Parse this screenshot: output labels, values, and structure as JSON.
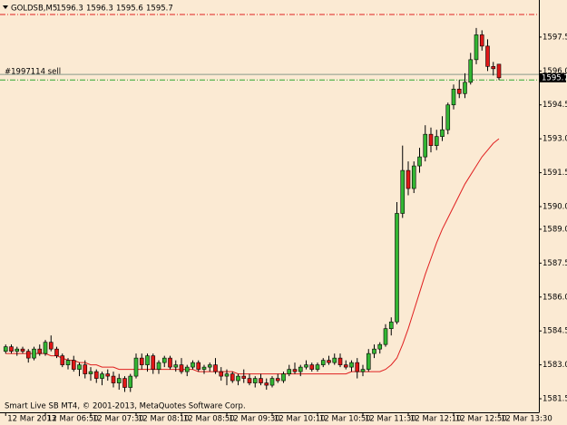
{
  "chart_data": {
    "type": "candlestick",
    "symbol": "GOLDSB,M5",
    "header_ohlc": [
      1596.3,
      1596.3,
      1595.6,
      1595.7
    ],
    "footer": "Smart Live SB MT4, © 2001-2013, MetaQuotes Software Corp.",
    "categories": [
      "12 Mar 2013",
      null,
      null,
      null,
      null,
      null,
      null,
      "12 Mar 06:50",
      null,
      null,
      null,
      null,
      null,
      null,
      null,
      "12 Mar 07:30",
      null,
      null,
      null,
      null,
      null,
      null,
      null,
      "12 Mar 08:10",
      null,
      null,
      null,
      null,
      null,
      null,
      null,
      "12 Mar 08:50",
      null,
      null,
      null,
      null,
      null,
      null,
      null,
      "12 Mar 09:30",
      null,
      null,
      null,
      null,
      null,
      null,
      null,
      "12 Mar 10:10",
      null,
      null,
      null,
      null,
      null,
      null,
      null,
      "12 Mar 10:50",
      null,
      null,
      null,
      null,
      null,
      null,
      null,
      "12 Mar 11:30",
      null,
      null,
      null,
      null,
      null,
      null,
      null,
      "12 Mar 12:10",
      null,
      null,
      null,
      null,
      null,
      null,
      null,
      "12 Mar 12:50",
      null,
      null,
      null,
      null,
      null,
      null,
      null,
      "12 Mar 13:30"
    ],
    "open": [
      1583.6,
      1583.8,
      1583.6,
      1583.7,
      1583.6,
      1583.3,
      1583.7,
      1583.5,
      1584.0,
      1583.7,
      1583.4,
      1583.0,
      1583.2,
      1582.8,
      1583.0,
      1582.6,
      1582.7,
      1582.4,
      1582.6,
      1582.5,
      1582.2,
      1582.4,
      1582.0,
      1582.5,
      1583.3,
      1583.0,
      1583.4,
      1582.8,
      1583.1,
      1583.3,
      1582.9,
      1583.0,
      1582.7,
      1582.9,
      1583.1,
      1582.8,
      1582.9,
      1583.0,
      1582.7,
      1582.5,
      1582.6,
      1582.3,
      1582.5,
      1582.4,
      1582.2,
      1582.4,
      1582.2,
      1582.1,
      1582.4,
      1582.3,
      1582.6,
      1582.8,
      1582.7,
      1582.9,
      1583.0,
      1582.8,
      1583.0,
      1583.2,
      1583.1,
      1583.3,
      1583.0,
      1582.9,
      1583.1,
      1582.7,
      1582.8,
      1583.5,
      1583.7,
      1583.9,
      1584.6,
      1584.9,
      1589.7,
      1591.6,
      1590.8,
      1591.8,
      1592.2,
      1593.2,
      1592.7,
      1593.1,
      1593.4,
      1594.5,
      1595.2,
      1595.0,
      1595.5,
      1596.5,
      1597.6,
      1597.1,
      1596.2,
      1596.3
    ],
    "high": [
      1583.9,
      1583.9,
      1583.8,
      1583.8,
      1583.7,
      1583.8,
      1583.9,
      1584.1,
      1584.3,
      1583.8,
      1583.5,
      1583.3,
      1583.4,
      1583.1,
      1583.2,
      1582.9,
      1582.8,
      1582.7,
      1582.8,
      1582.7,
      1582.6,
      1582.5,
      1582.6,
      1583.5,
      1583.5,
      1583.5,
      1583.5,
      1583.2,
      1583.4,
      1583.4,
      1583.2,
      1583.3,
      1583.0,
      1583.2,
      1583.2,
      1583.0,
      1583.1,
      1583.3,
      1582.9,
      1582.8,
      1582.7,
      1582.6,
      1582.8,
      1582.6,
      1582.5,
      1582.6,
      1582.4,
      1582.5,
      1582.6,
      1582.7,
      1583.0,
      1583.1,
      1583.0,
      1583.2,
      1583.1,
      1583.1,
      1583.3,
      1583.4,
      1583.5,
      1583.5,
      1583.2,
      1583.2,
      1583.3,
      1583.0,
      1583.7,
      1583.9,
      1584.0,
      1584.8,
      1585.1,
      1590.2,
      1592.7,
      1592.0,
      1592.0,
      1592.6,
      1593.6,
      1593.5,
      1593.4,
      1594.0,
      1594.6,
      1595.4,
      1595.6,
      1595.9,
      1596.8,
      1597.9,
      1597.8,
      1597.4,
      1596.4,
      1596.3
    ],
    "low": [
      1583.5,
      1583.5,
      1583.4,
      1583.5,
      1583.1,
      1583.2,
      1583.4,
      1583.4,
      1583.6,
      1583.3,
      1582.9,
      1582.8,
      1582.7,
      1582.5,
      1582.4,
      1582.3,
      1582.2,
      1582.1,
      1582.3,
      1582.0,
      1581.9,
      1581.8,
      1581.8,
      1582.4,
      1582.8,
      1582.7,
      1582.6,
      1582.6,
      1582.9,
      1582.8,
      1582.7,
      1582.6,
      1582.5,
      1582.8,
      1582.7,
      1582.6,
      1582.7,
      1582.6,
      1582.3,
      1582.1,
      1582.2,
      1582.1,
      1582.2,
      1582.1,
      1582.0,
      1582.1,
      1581.9,
      1582.0,
      1582.2,
      1582.2,
      1582.5,
      1582.6,
      1582.5,
      1582.8,
      1582.7,
      1582.7,
      1582.9,
      1583.0,
      1583.0,
      1582.9,
      1582.8,
      1582.7,
      1582.4,
      1582.5,
      1582.7,
      1583.3,
      1583.5,
      1583.8,
      1584.3,
      1584.8,
      1589.5,
      1590.5,
      1590.6,
      1591.5,
      1592.0,
      1592.4,
      1592.5,
      1592.9,
      1593.2,
      1594.3,
      1594.8,
      1594.8,
      1595.4,
      1596.3,
      1596.9,
      1596.0,
      1595.8,
      1595.6
    ],
    "close": [
      1583.8,
      1583.6,
      1583.7,
      1583.6,
      1583.3,
      1583.7,
      1583.5,
      1584.0,
      1583.7,
      1583.4,
      1583.0,
      1583.2,
      1582.8,
      1583.0,
      1582.6,
      1582.7,
      1582.4,
      1582.6,
      1582.5,
      1582.2,
      1582.4,
      1582.0,
      1582.5,
      1583.3,
      1583.0,
      1583.4,
      1582.8,
      1583.1,
      1583.3,
      1582.9,
      1583.0,
      1582.7,
      1582.9,
      1583.1,
      1582.8,
      1582.9,
      1583.0,
      1582.7,
      1582.5,
      1582.6,
      1582.3,
      1582.5,
      1582.4,
      1582.2,
      1582.4,
      1582.2,
      1582.1,
      1582.4,
      1582.3,
      1582.6,
      1582.8,
      1582.7,
      1582.9,
      1583.0,
      1582.8,
      1583.0,
      1583.2,
      1583.1,
      1583.3,
      1583.0,
      1582.9,
      1583.1,
      1582.7,
      1582.8,
      1583.5,
      1583.7,
      1583.9,
      1584.6,
      1584.9,
      1589.7,
      1591.6,
      1590.8,
      1591.8,
      1592.2,
      1593.2,
      1592.7,
      1593.1,
      1593.4,
      1594.5,
      1595.2,
      1595.0,
      1595.5,
      1596.5,
      1597.6,
      1597.1,
      1596.2,
      1596.1,
      1595.7
    ],
    "up_color": "#33b633",
    "down_color": "#e01818",
    "ma": {
      "color": "#e02020",
      "values": [
        1583.5,
        1583.5,
        1583.5,
        1583.5,
        1583.5,
        1583.5,
        1583.5,
        1583.5,
        1583.4,
        1583.4,
        1583.3,
        1583.2,
        1583.2,
        1583.1,
        1583.1,
        1583.0,
        1583.0,
        1582.9,
        1582.9,
        1582.9,
        1582.8,
        1582.8,
        1582.8,
        1582.8,
        1582.8,
        1582.8,
        1582.8,
        1582.8,
        1582.8,
        1582.8,
        1582.8,
        1582.8,
        1582.8,
        1582.8,
        1582.7,
        1582.7,
        1582.7,
        1582.7,
        1582.7,
        1582.7,
        1582.7,
        1582.6,
        1582.6,
        1582.6,
        1582.6,
        1582.6,
        1582.6,
        1582.6,
        1582.6,
        1582.6,
        1582.6,
        1582.6,
        1582.6,
        1582.6,
        1582.6,
        1582.6,
        1582.6,
        1582.6,
        1582.6,
        1582.6,
        1582.6,
        1582.7,
        1582.7,
        1582.7,
        1582.7,
        1582.7,
        1582.7,
        1582.8,
        1583.0,
        1583.3,
        1583.9,
        1584.6,
        1585.4,
        1586.2,
        1587.0,
        1587.7,
        1588.4,
        1589.0,
        1589.5,
        1590.0,
        1590.5,
        1591.0,
        1591.4,
        1591.8,
        1592.2,
        1592.5,
        1592.8,
        1593.0
      ]
    },
    "ylim": [
      1580.9,
      1599.14
    ],
    "yticks": [
      1597.5,
      {
        "value": 1596.0,
        "label": "1596.0"
      },
      1594.5,
      {
        "value": 1593.0,
        "label": "1593.0"
      },
      1591.5,
      {
        "value": 1590.0,
        "label": "1590.0"
      },
      {
        "value": 1589.0,
        "label": "1589.0"
      },
      1587.5,
      {
        "value": 1586.0,
        "label": "1586.0"
      },
      1584.5,
      {
        "value": 1583.0,
        "label": "1583.0"
      },
      1581.5
    ],
    "order_line": {
      "label": "#1997114 sell",
      "value": 1595.85,
      "color": "#8a9a8a"
    },
    "ask_line": {
      "value": 1595.6,
      "color": "#2ea82e"
    },
    "stop_line": {
      "value": 1598.5,
      "color": "#e02020"
    },
    "bid": {
      "value": 1595.7,
      "label": "1595.7"
    }
  }
}
